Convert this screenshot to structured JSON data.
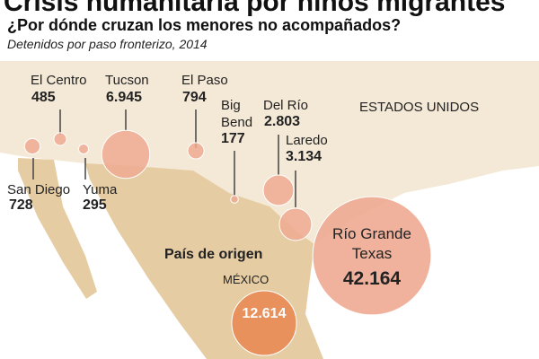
{
  "title": "Crisis humanitaria por niños migrantes",
  "subtitle": "¿Por dónde cruzan los menores no acompañados?",
  "note": "Detenidos por paso fronterizo, 2014",
  "country_label": "ESTADOS UNIDOS",
  "origin": {
    "heading": "País de origen",
    "name": "MÉXICO",
    "label": "12.614",
    "count": 12614
  },
  "crossings": [
    {
      "name": "San Diego",
      "label": "728",
      "count": 728
    },
    {
      "name": "El Centro",
      "label": "485",
      "count": 485
    },
    {
      "name": "Yuma",
      "label": "295",
      "count": 295
    },
    {
      "name": "Tucson",
      "label": "6.945",
      "count": 6945
    },
    {
      "name": "El Paso",
      "label": "794",
      "count": 794
    },
    {
      "name": "Big Bend",
      "label": "177",
      "count": 177
    },
    {
      "name": "Del Río",
      "label": "2.803",
      "count": 2803
    },
    {
      "name": "Laredo",
      "label": "3.134",
      "count": 3134
    },
    {
      "name": "Río Grande Texas",
      "label": "42.164",
      "count": 42164
    }
  ]
}
